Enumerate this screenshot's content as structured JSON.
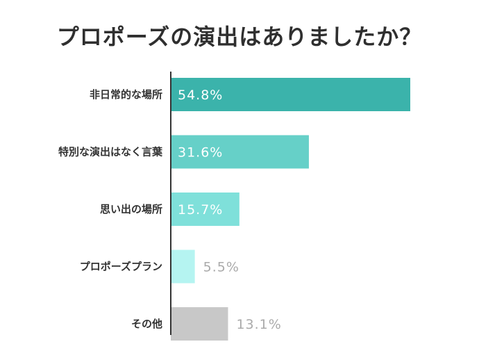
{
  "title": "プロポーズの演出はありましたか？",
  "colors": {
    "title": "#2f2f2f",
    "axis": "#333333",
    "label_dark": "#333333",
    "value_inside": "#ffffff",
    "value_outside": "#aaaaaa"
  },
  "chart_data": {
    "type": "bar",
    "orientation": "horizontal",
    "title": "プロポーズの演出はありましたか？",
    "xlabel": "",
    "ylabel": "",
    "unit": "%",
    "xlim": [
      0,
      100
    ],
    "grid": false,
    "legend": "none",
    "categories": [
      "非日常的な場所",
      "特別な演出はなく言葉",
      "思い出の場所",
      "プロポーズプラン",
      "その他"
    ],
    "values": [
      54.8,
      31.6,
      15.7,
      5.5,
      13.1
    ],
    "value_labels": [
      "54.8%",
      "31.6%",
      "15.7%",
      "5.5%",
      "13.1%"
    ],
    "bar_colors": [
      "#3bb3ab",
      "#66d0c8",
      "#7fe0da",
      "#b5f4f1",
      "#c8c8c8"
    ],
    "label_inside": [
      true,
      true,
      true,
      false,
      false
    ]
  }
}
